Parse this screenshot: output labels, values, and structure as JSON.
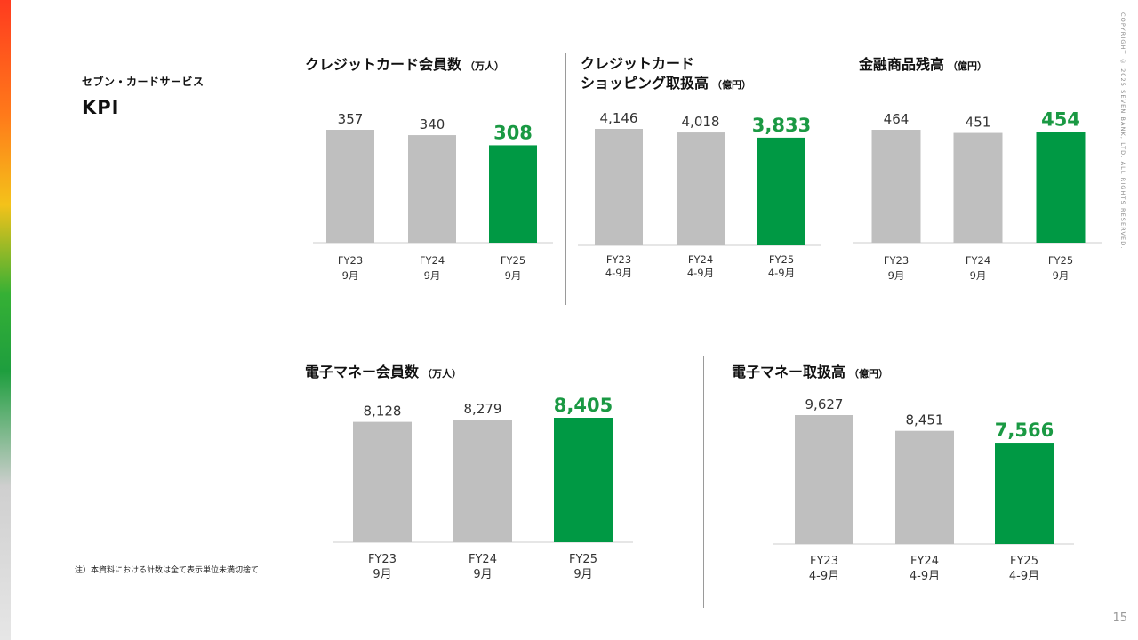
{
  "page": {
    "subtitle": "セブン・カードサービス",
    "title": "KPI",
    "footnote": "注）本資料における計数は全て表示単位未満切捨て",
    "copyright": "COPYRIGHT © 2025 SEVEN BANK, LTD. ALL RIGHTS RESERVED.",
    "page_number": "15"
  },
  "colors": {
    "past_bar": "#bfbfbf",
    "current_bar": "#009944",
    "current_label": "#1a9943",
    "axis": "#cccccc"
  },
  "chart_data": [
    {
      "type": "bar",
      "title_lines": [
        "クレジットカード会員数"
      ],
      "unit": "（万人）",
      "categories": [
        "FY23\n9月",
        "FY24\n9月",
        "FY25\n9月"
      ],
      "values": [
        357,
        340,
        308
      ],
      "value_labels": [
        "357",
        "340",
        "308"
      ],
      "highlight_index": 2
    },
    {
      "type": "bar",
      "title_lines": [
        "クレジットカード",
        "ショッピング取扱高"
      ],
      "unit": "（億円）",
      "categories": [
        "FY23\n4-9月",
        "FY24\n4-9月",
        "FY25\n4-9月"
      ],
      "values": [
        4146,
        4018,
        3833
      ],
      "value_labels": [
        "4,146",
        "4,018",
        "3,833"
      ],
      "highlight_index": 2
    },
    {
      "type": "bar",
      "title_lines": [
        "金融商品残高"
      ],
      "unit": "（億円）",
      "categories": [
        "FY23\n9月",
        "FY24\n9月",
        "FY25\n9月"
      ],
      "values": [
        464,
        451,
        454
      ],
      "value_labels": [
        "464",
        "451",
        "454"
      ],
      "highlight_index": 2
    },
    {
      "type": "bar",
      "title_lines": [
        "電子マネー会員数"
      ],
      "unit": "（万人）",
      "categories": [
        "FY23\n9月",
        "FY24\n9月",
        "FY25\n9月"
      ],
      "values": [
        8128,
        8279,
        8405
      ],
      "value_labels": [
        "8,128",
        "8,279",
        "8,405"
      ],
      "highlight_index": 2
    },
    {
      "type": "bar",
      "title_lines": [
        "電子マネー取扱高"
      ],
      "unit": "（億円）",
      "categories": [
        "FY23\n4-9月",
        "FY24\n4-9月",
        "FY25\n4-9月"
      ],
      "values": [
        9627,
        8451,
        7566
      ],
      "value_labels": [
        "9,627",
        "8,451",
        "7,566"
      ],
      "highlight_index": 2
    }
  ]
}
